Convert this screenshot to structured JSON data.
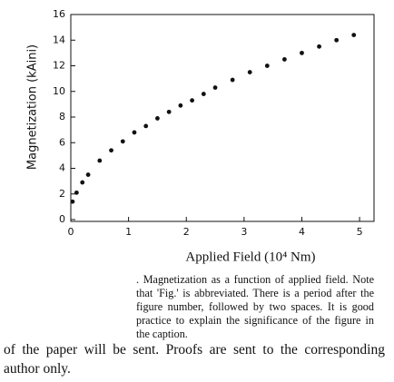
{
  "chart_data": {
    "type": "scatter",
    "x_label": "Applied Field (10⁴ Nm)",
    "y_label": "Magnetization (kAini)",
    "x": [
      0.03,
      0.1,
      0.2,
      0.3,
      0.5,
      0.7,
      0.9,
      1.1,
      1.3,
      1.5,
      1.7,
      1.9,
      2.1,
      2.3,
      2.5,
      2.8,
      3.1,
      3.4,
      3.7,
      4.0,
      4.3,
      4.6,
      4.9
    ],
    "values": [
      1.4,
      2.1,
      2.9,
      3.5,
      4.6,
      5.4,
      6.1,
      6.8,
      7.3,
      7.9,
      8.4,
      8.9,
      9.3,
      9.8,
      10.3,
      10.9,
      11.5,
      12.0,
      12.5,
      13.0,
      13.5,
      14.0,
      14.4
    ],
    "color": "#111111",
    "xlim": [
      0,
      5.25
    ],
    "ylim": [
      0,
      16
    ],
    "xticks": [
      0,
      1,
      2,
      3,
      4,
      5
    ],
    "yticks": [
      0,
      2,
      4,
      6,
      8,
      10,
      12,
      14,
      16
    ],
    "grid": false
  },
  "caption": ". Magnetization as a function of applied field. Note that 'Fig.' is abbreviated. There is a period after the figure number, followed by two spaces. It is good practice to explain the significance of the figure in the caption.",
  "body_text": "of the paper will be sent. Proofs are sent to the corresponding author only."
}
